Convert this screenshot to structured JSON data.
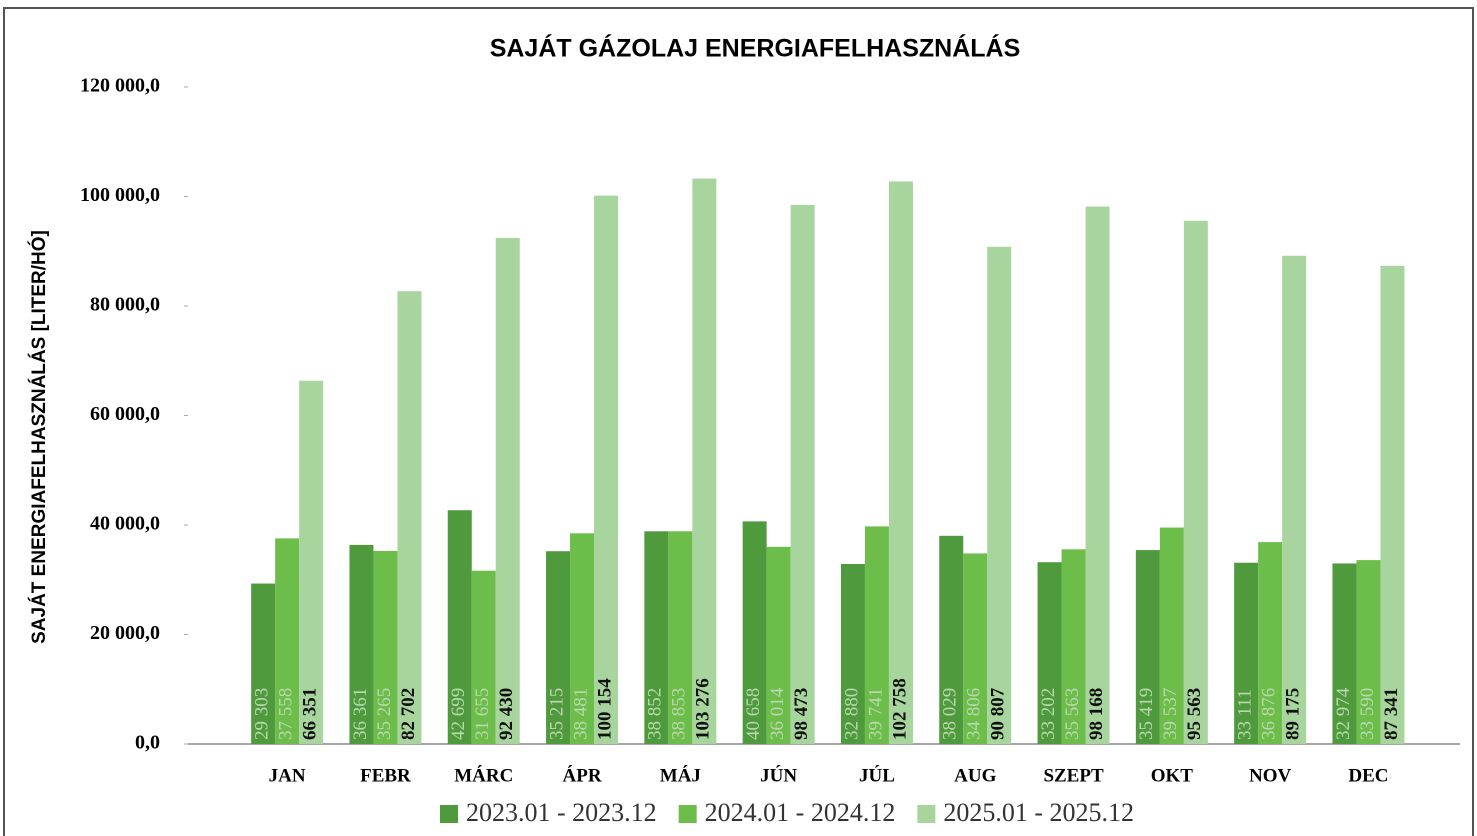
{
  "chart_data": {
    "type": "bar",
    "title": "SAJÁT GÁZOLAJ ENERGIAFELHASZNÁLÁS",
    "y_label": "SAJÁT ENERGIAFELHASZNÁLÁS [LITER/HÓ]",
    "categories": [
      "JAN",
      "FEBR",
      "MÁRC",
      "ÁPR",
      "MÁJ",
      "JÚN",
      "JÚL",
      "AUG",
      "SZEPT",
      "OKT",
      "NOV",
      "DEC"
    ],
    "series": [
      {
        "name": "2023.01 - 2023.12",
        "color": "#4f9a3d",
        "values": [
          29303,
          36361,
          42699,
          35215,
          38852,
          40658,
          32880,
          38029,
          33202,
          35419,
          33111,
          32974
        ],
        "value_labels": [
          "29 303",
          "36 361",
          "42 699",
          "35 215",
          "38 852",
          "40 658",
          "32 880",
          "38 029",
          "33 202",
          "35 419",
          "33 111",
          "32 974"
        ]
      },
      {
        "name": "2024.01 - 2024.12",
        "color": "#6dbd4b",
        "values": [
          37558,
          35265,
          31655,
          38481,
          38853,
          36014,
          39741,
          34806,
          35563,
          39537,
          36876,
          33590
        ],
        "value_labels": [
          "37 558",
          "35 265",
          "31 655",
          "38 481",
          "38 853",
          "36 014",
          "39 741",
          "34 806",
          "35 563",
          "39 537",
          "36 876",
          "33 590"
        ]
      },
      {
        "name": "2025.01 - 2025.12",
        "color": "#a8d59e",
        "values": [
          66351,
          82702,
          92430,
          100154,
          103276,
          98473,
          102758,
          90807,
          98168,
          95563,
          89175,
          87341
        ],
        "value_labels": [
          "66 351",
          "82 702",
          "92 430",
          "100 154",
          "103 276",
          "98 473",
          "102 758",
          "90 807",
          "98 168",
          "95 563",
          "89 175",
          "87 341"
        ]
      }
    ],
    "ylim": [
      0,
      120000
    ],
    "yticks": [
      {
        "value": 0,
        "label": "0,0"
      },
      {
        "value": 20000,
        "label": "20 000,0"
      },
      {
        "value": 40000,
        "label": "40 000,0"
      },
      {
        "value": 60000,
        "label": "60 000,0"
      },
      {
        "value": 80000,
        "label": "80 000,0"
      },
      {
        "value": 100000,
        "label": "100 000,0"
      },
      {
        "value": 120000,
        "label": "120 000,0"
      }
    ],
    "grid": false
  }
}
